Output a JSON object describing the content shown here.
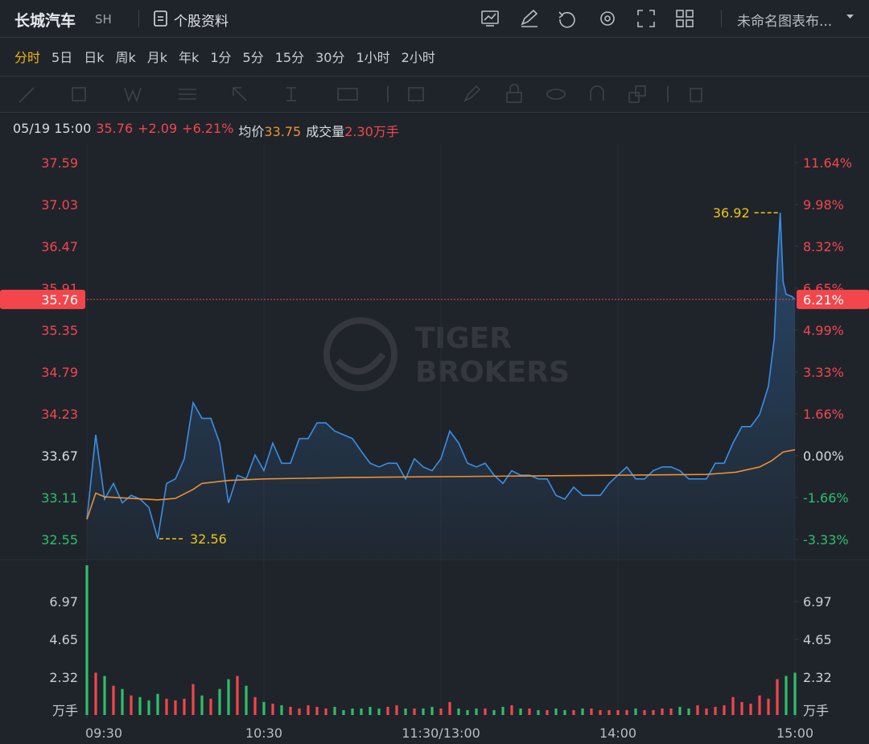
{
  "header": {
    "title": "长城汽车",
    "exchange": "SH",
    "profile": "个股资料",
    "layout": "未命名图表布..."
  },
  "tabs": [
    "分时",
    "5日",
    "日k",
    "周k",
    "月k",
    "年k",
    "1分",
    "5分",
    "15分",
    "30分",
    "1小时",
    "2小时"
  ],
  "info": {
    "time": "05/19 15:00",
    "price": "35.76",
    "change": "+2.09",
    "change_pct": "+6.21%",
    "avg_label": "均价",
    "avg": "33.75",
    "vol_label": "成交量",
    "vol": "2.30",
    "vol_unit": "万手"
  },
  "watermark": [
    "TIGER",
    "BROKERS"
  ],
  "chart_data": {
    "type": "line",
    "xlim": [
      0,
      240
    ],
    "xticks": [
      {
        "value": 0,
        "label": "09:30"
      },
      {
        "value": 60,
        "label": "10:30"
      },
      {
        "value": 120,
        "label": "11:30/13:00"
      },
      {
        "value": 180,
        "label": "14:00"
      },
      {
        "value": 240,
        "label": "15:00"
      }
    ],
    "ylim": [
      32.55,
      37.59
    ],
    "yticks": [
      37.59,
      37.03,
      36.47,
      35.91,
      35.35,
      34.79,
      34.23,
      33.67,
      33.11,
      32.55
    ],
    "y2lim": [
      -3.33,
      11.64
    ],
    "y2ticks": [
      {
        "value": 11.64,
        "label": "11.64%"
      },
      {
        "value": 9.98,
        "label": "9.98%"
      },
      {
        "value": 8.32,
        "label": "8.32%"
      },
      {
        "value": 6.65,
        "label": "6.65%"
      },
      {
        "value": 4.99,
        "label": "4.99%"
      },
      {
        "value": 3.33,
        "label": "3.33%"
      },
      {
        "value": 1.66,
        "label": "1.66%"
      },
      {
        "value": 0,
        "label": "0.00%"
      },
      {
        "value": -1.66,
        "label": "-1.66%"
      },
      {
        "value": -3.33,
        "label": "-3.33%"
      }
    ],
    "up_color": "#f2464c",
    "down_color": "#2fbf6a",
    "price": {
      "color": "#3a8ee6",
      "x": [
        0,
        3,
        6,
        9,
        12,
        15,
        18,
        21,
        24,
        27,
        30,
        33,
        36,
        39,
        42,
        45,
        48,
        51,
        54,
        57,
        60,
        63,
        66,
        69,
        72,
        75,
        78,
        81,
        84,
        87,
        90,
        93,
        96,
        99,
        102,
        105,
        108,
        111,
        114,
        117,
        120,
        123,
        126,
        129,
        132,
        135,
        138,
        141,
        144,
        147,
        150,
        153,
        156,
        159,
        162,
        165,
        168,
        171,
        174,
        177,
        180,
        183,
        186,
        189,
        192,
        195,
        198,
        201,
        204,
        207,
        210,
        213,
        216,
        219,
        222,
        225,
        228,
        231,
        233,
        234,
        235,
        236,
        237,
        239,
        240
      ],
      "values": [
        32.82,
        33.95,
        33.09,
        33.3,
        33.04,
        33.14,
        33.09,
        32.98,
        32.56,
        33.3,
        33.36,
        33.63,
        34.38,
        34.17,
        34.17,
        33.84,
        33.04,
        33.41,
        33.36,
        33.68,
        33.47,
        33.84,
        33.57,
        33.57,
        33.9,
        33.9,
        34.11,
        34.11,
        34.0,
        33.95,
        33.9,
        33.73,
        33.57,
        33.52,
        33.57,
        33.57,
        33.36,
        33.63,
        33.52,
        33.47,
        33.63,
        34.0,
        33.84,
        33.57,
        33.52,
        33.57,
        33.41,
        33.3,
        33.47,
        33.41,
        33.41,
        33.36,
        33.36,
        33.14,
        33.09,
        33.25,
        33.14,
        33.14,
        33.14,
        33.3,
        33.41,
        33.52,
        33.36,
        33.36,
        33.47,
        33.52,
        33.52,
        33.47,
        33.36,
        33.36,
        33.36,
        33.57,
        33.57,
        33.84,
        34.06,
        34.06,
        34.22,
        34.6,
        35.24,
        36.21,
        36.92,
        35.99,
        35.83,
        35.8,
        35.76
      ]
    },
    "average": {
      "color": "#ec9130",
      "x": [
        0,
        3,
        6,
        15,
        24,
        30,
        36,
        39,
        48,
        60,
        90,
        120,
        150,
        180,
        210,
        220,
        228,
        232,
        236,
        240
      ],
      "values": [
        32.82,
        33.17,
        33.12,
        33.1,
        33.08,
        33.1,
        33.22,
        33.3,
        33.34,
        33.36,
        33.38,
        33.39,
        33.4,
        33.41,
        33.42,
        33.45,
        33.52,
        33.6,
        33.72,
        33.75
      ]
    },
    "last": {
      "value": 35.76,
      "label": "6.21%",
      "color": "#f2464c"
    },
    "volume": {
      "type": "bar",
      "ylim": [
        0,
        9.3
      ],
      "yticks": [
        6.97,
        4.65,
        2.32
      ],
      "unit": "万手",
      "x": [
        0,
        3,
        6,
        9,
        12,
        15,
        18,
        21,
        24,
        27,
        30,
        33,
        36,
        39,
        42,
        45,
        48,
        51,
        54,
        57,
        60,
        63,
        66,
        69,
        72,
        75,
        78,
        81,
        84,
        87,
        90,
        93,
        96,
        99,
        102,
        105,
        108,
        111,
        114,
        117,
        120,
        123,
        126,
        129,
        132,
        135,
        138,
        141,
        144,
        147,
        150,
        153,
        156,
        159,
        162,
        165,
        168,
        171,
        174,
        177,
        180,
        183,
        186,
        189,
        192,
        195,
        198,
        201,
        204,
        207,
        210,
        213,
        216,
        219,
        222,
        225,
        228,
        231,
        234,
        237,
        240
      ],
      "values": [
        9.2,
        2.6,
        2.4,
        1.8,
        1.6,
        1.2,
        1.1,
        0.9,
        1.3,
        1.0,
        0.9,
        1.0,
        1.9,
        1.2,
        1.0,
        1.6,
        2.2,
        2.4,
        1.8,
        1.1,
        0.8,
        0.7,
        0.6,
        0.5,
        0.4,
        0.6,
        0.5,
        0.4,
        0.5,
        0.3,
        0.4,
        0.4,
        0.5,
        0.4,
        0.5,
        0.6,
        0.4,
        0.4,
        0.4,
        0.5,
        0.4,
        0.8,
        0.4,
        0.3,
        0.4,
        0.4,
        0.3,
        0.5,
        0.6,
        0.4,
        0.4,
        0.3,
        0.3,
        0.4,
        0.3,
        0.3,
        0.4,
        0.4,
        0.3,
        0.3,
        0.3,
        0.3,
        0.4,
        0.3,
        0.3,
        0.4,
        0.4,
        0.5,
        0.4,
        0.6,
        0.4,
        0.5,
        0.6,
        1.1,
        0.8,
        0.7,
        1.2,
        1.0,
        2.2,
        2.4,
        2.6
      ]
    }
  }
}
